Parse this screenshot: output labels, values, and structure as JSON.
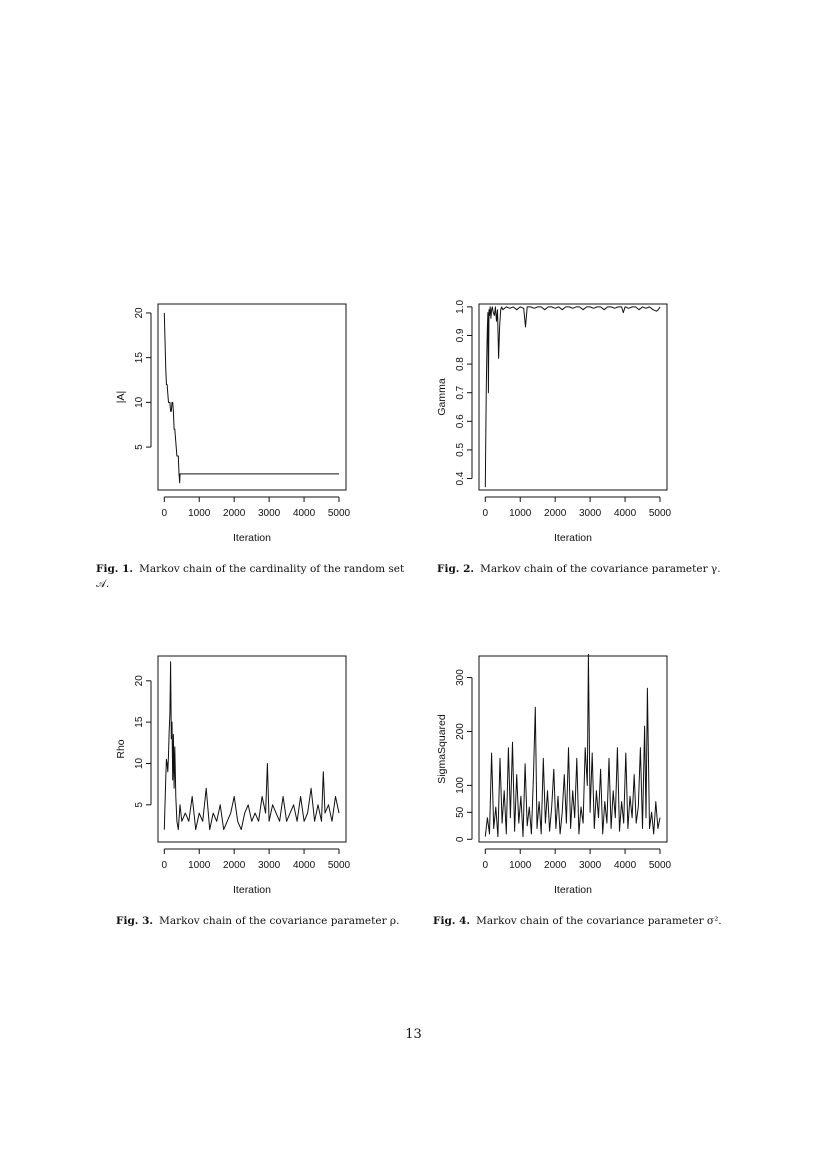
{
  "figures": [
    {
      "caption_label": "Fig. 1.",
      "caption_text": "Markov chain of the cardinality of the random set 𝒜.",
      "chart_data": {
        "type": "line",
        "xlabel": "Iteration",
        "ylabel": "|A|",
        "xlim": [
          -180,
          5200
        ],
        "ylim": [
          0.2,
          21
        ],
        "xticks": [
          0,
          1000,
          2000,
          3000,
          4000,
          5000
        ],
        "yticks": [
          5,
          10,
          15,
          20
        ],
        "grid": false,
        "series": [
          {
            "x": [
              0,
              20,
              40,
              60,
              80,
              100,
              120,
              140,
              160,
              180,
              200,
              220,
              240,
              260,
              280,
              300,
              320,
              340,
              360,
              380,
              400,
              420,
              440,
              450,
              460,
              5000
            ],
            "y": [
              20,
              17,
              14,
              12,
              12,
              11,
              10,
              10,
              10,
              9,
              9,
              10,
              10,
              9,
              7,
              7,
              6,
              5,
              4,
              4,
              4,
              2,
              1,
              2,
              2,
              2
            ]
          }
        ]
      }
    },
    {
      "caption_label": "Fig. 2.",
      "caption_text": "Markov chain of the covariance parameter γ.",
      "chart_data": {
        "type": "line",
        "xlabel": "Iteration",
        "ylabel": "Gamma",
        "xlim": [
          -180,
          5200
        ],
        "ylim": [
          0.36,
          1.01
        ],
        "xticks": [
          0,
          1000,
          2000,
          3000,
          4000,
          5000
        ],
        "yticks": [
          0.4,
          0.5,
          0.6,
          0.7,
          0.8,
          0.9,
          1.0
        ],
        "grid": false,
        "series": [
          {
            "x": [
              0,
              15,
              30,
              45,
              60,
              75,
              90,
              105,
              120,
              140,
              160,
              180,
              200,
              230,
              260,
              290,
              320,
              350,
              380,
              410,
              440,
              470,
              500,
              600,
              700,
              800,
              900,
              1000,
              1100,
              1150,
              1200,
              1300,
              1400,
              1500,
              1600,
              1700,
              1800,
              1900,
              2000,
              2100,
              2200,
              2300,
              2400,
              2500,
              2600,
              2700,
              2800,
              2900,
              3000,
              3100,
              3200,
              3300,
              3400,
              3500,
              3600,
              3700,
              3800,
              3900,
              3950,
              4000,
              4100,
              4200,
              4300,
              4400,
              4500,
              4600,
              4700,
              4800,
              4900,
              4950,
              5000
            ],
            "y": [
              0.37,
              0.55,
              0.72,
              0.85,
              0.93,
              0.98,
              0.7,
              0.99,
              0.97,
              1.0,
              0.96,
              0.99,
              1.0,
              0.98,
              0.97,
              1.0,
              0.95,
              0.99,
              0.82,
              0.93,
              0.99,
              1.0,
              0.99,
              1.0,
              0.995,
              1.0,
              0.99,
              1.0,
              0.995,
              0.93,
              1.0,
              1.0,
              0.995,
              1.0,
              1.0,
              0.99,
              1.0,
              1.0,
              0.995,
              1.0,
              0.99,
              1.0,
              1.0,
              0.995,
              1.0,
              1.0,
              0.99,
              1.0,
              1.0,
              0.995,
              1.0,
              1.0,
              0.99,
              1.0,
              1.0,
              0.995,
              1.0,
              1.0,
              0.98,
              1.0,
              0.995,
              1.0,
              1.0,
              0.99,
              1.0,
              0.995,
              1.0,
              0.99,
              0.985,
              0.99,
              1.0
            ]
          }
        ]
      }
    },
    {
      "caption_label": "Fig. 3.",
      "caption_text": "Markov chain of the covariance parameter ρ.",
      "chart_data": {
        "type": "line",
        "xlabel": "Iteration",
        "ylabel": "Rho",
        "xlim": [
          -180,
          5200
        ],
        "ylim": [
          0.5,
          23
        ],
        "xticks": [
          0,
          1000,
          2000,
          3000,
          4000,
          5000
        ],
        "yticks": [
          5,
          10,
          15,
          20
        ],
        "grid": false,
        "series": [
          {
            "x": [
              0,
              20,
              40,
              60,
              80,
              100,
              120,
              140,
              160,
              180,
              200,
              220,
              240,
              260,
              280,
              300,
              330,
              360,
              400,
              450,
              500,
              600,
              700,
              800,
              900,
              1000,
              1100,
              1200,
              1300,
              1400,
              1500,
              1600,
              1700,
              1800,
              1900,
              2000,
              2100,
              2200,
              2300,
              2400,
              2500,
              2600,
              2700,
              2800,
              2900,
              2950,
              3000,
              3100,
              3200,
              3300,
              3400,
              3500,
              3600,
              3700,
              3800,
              3900,
              4000,
              4100,
              4200,
              4300,
              4400,
              4500,
              4550,
              4600,
              4700,
              4800,
              4900,
              5000
            ],
            "y": [
              2,
              5,
              8,
              10.5,
              10,
              9,
              11,
              14,
              16,
              22.3,
              13,
              15,
              8,
              13.5,
              7,
              12,
              6,
              3,
              2,
              5,
              3,
              4,
              3,
              6,
              2,
              4,
              3,
              7,
              2,
              4,
              3,
              5,
              2,
              3,
              4,
              6,
              3,
              2,
              4,
              5,
              3,
              4,
              3,
              6,
              4,
              10,
              3,
              5,
              4,
              3,
              6,
              3,
              4,
              5,
              3,
              6,
              3,
              4,
              7,
              3,
              5,
              3,
              9,
              4,
              5,
              3,
              6,
              4
            ]
          }
        ]
      }
    },
    {
      "caption_label": "Fig. 4.",
      "caption_text": "Markov chain of the covariance parameter σ².",
      "chart_data": {
        "type": "line",
        "xlabel": "Iteration",
        "ylabel": "SigmaSquared",
        "xlim": [
          -180,
          5200
        ],
        "ylim": [
          -5,
          340
        ],
        "xticks": [
          0,
          1000,
          2000,
          3000,
          4000,
          5000
        ],
        "yticks": [
          0,
          50,
          100,
          200,
          300
        ],
        "grid": false,
        "series": [
          {
            "x": [
              0,
              60,
              120,
              180,
              240,
              300,
              360,
              420,
              480,
              540,
              600,
              660,
              720,
              780,
              840,
              900,
              960,
              1020,
              1080,
              1140,
              1200,
              1260,
              1320,
              1380,
              1430,
              1480,
              1540,
              1600,
              1660,
              1720,
              1780,
              1840,
              1900,
              1960,
              2020,
              2080,
              2140,
              2200,
              2260,
              2320,
              2380,
              2440,
              2500,
              2560,
              2620,
              2680,
              2740,
              2800,
              2860,
              2920,
              2950,
              3000,
              3060,
              3120,
              3180,
              3240,
              3300,
              3360,
              3420,
              3480,
              3540,
              3600,
              3660,
              3720,
              3780,
              3840,
              3900,
              3960,
              4020,
              4080,
              4140,
              4200,
              4260,
              4320,
              4380,
              4440,
              4500,
              4560,
              4600,
              4640,
              4700,
              4760,
              4820,
              4880,
              4940,
              5000
            ],
            "y": [
              5,
              40,
              10,
              160,
              20,
              60,
              5,
              150,
              30,
              90,
              10,
              170,
              40,
              180,
              15,
              120,
              30,
              80,
              5,
              140,
              25,
              60,
              10,
              120,
              245,
              20,
              70,
              10,
              150,
              30,
              90,
              15,
              60,
              130,
              20,
              80,
              10,
              50,
              120,
              30,
              170,
              20,
              90,
              40,
              150,
              10,
              60,
              30,
              170,
              100,
              343,
              50,
              160,
              20,
              90,
              40,
              130,
              10,
              70,
              30,
              150,
              20,
              90,
              40,
              170,
              15,
              70,
              30,
              160,
              20,
              80,
              40,
              120,
              30,
              60,
              170,
              20,
              210,
              40,
              280,
              20,
              50,
              10,
              70,
              20,
              40
            ]
          }
        ]
      }
    }
  ],
  "page_number": "13"
}
